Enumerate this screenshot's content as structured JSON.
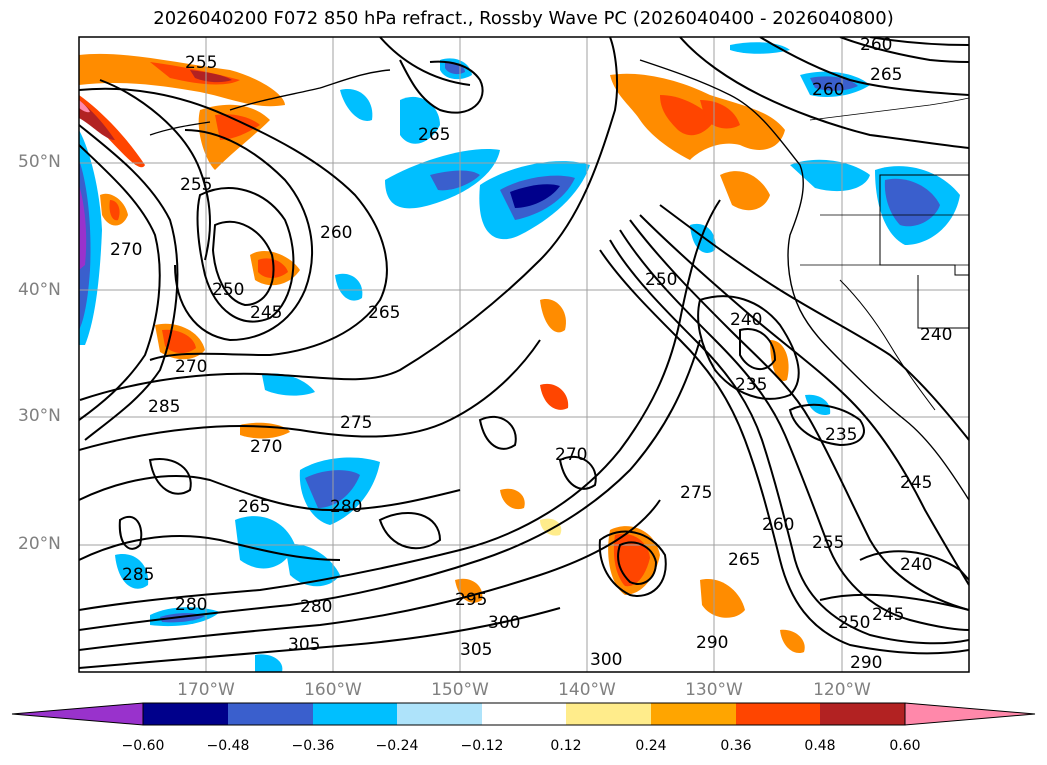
{
  "title": "2026040200 F072 850 hPa refract., Rossby Wave PC (2026040400 - 2026040800)",
  "lat_labels": [
    "50°N",
    "40°N",
    "30°N",
    "20°N"
  ],
  "lon_labels": [
    "170°W",
    "160°W",
    "150°W",
    "140°W",
    "130°W",
    "120°W"
  ],
  "contour_labels": [
    "255",
    "260",
    "265",
    "250",
    "245",
    "270",
    "255",
    "260",
    "265",
    "270",
    "275",
    "280",
    "285",
    "270",
    "265",
    "280",
    "285",
    "280",
    "290",
    "295",
    "300",
    "305",
    "270",
    "275",
    "265",
    "260",
    "255",
    "250",
    "245",
    "240",
    "235",
    "240",
    "245",
    "250",
    "235",
    "240",
    "290",
    "300",
    "305",
    "260",
    "265"
  ],
  "colorbar": {
    "tick_labels": [
      "−0.60",
      "−0.48",
      "−0.36",
      "−0.24",
      "−0.12",
      "0.12",
      "0.24",
      "0.36",
      "0.48",
      "0.60"
    ],
    "colors": [
      "#9932cc",
      "#00008b",
      "#3a5fcd",
      "#00bfff",
      "#aee3fa",
      "#ffffff",
      "#ffec8b",
      "#ffa500",
      "#ff4500",
      "#b22222",
      "#ff88aa"
    ]
  },
  "colors": {
    "grid": "#a0a0a0",
    "contour": "#000000",
    "axis_text": "#808080"
  }
}
